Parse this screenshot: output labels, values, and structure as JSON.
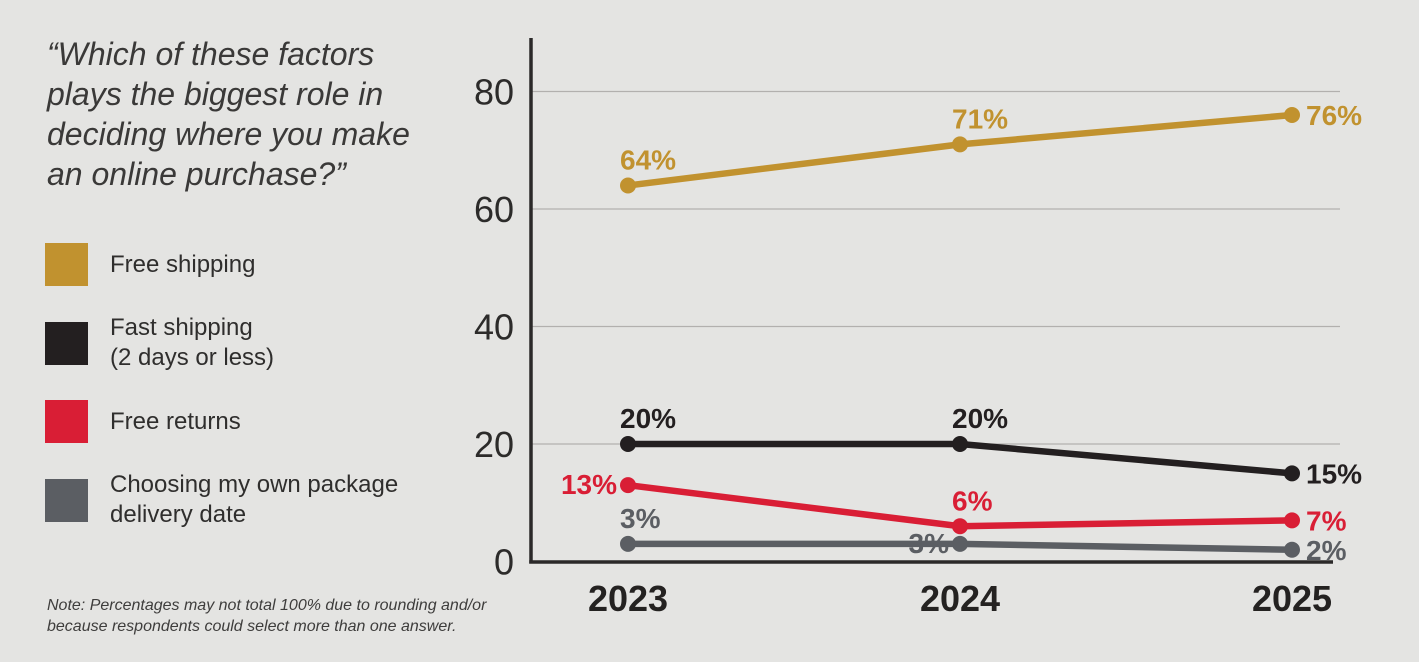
{
  "title": {
    "text": "“Which of these factors\nplays the biggest role in\ndeciding where you make\nan online purchase?”"
  },
  "note": {
    "text": "Note: Percentages may not total 100% due to rounding and/or\nbecause respondents could select more than one answer."
  },
  "colors": {
    "background": "#E4E4E2",
    "grid": "#B2B0AE",
    "axis": "#2B2929",
    "gold": "#C1922F",
    "black": "#231F20",
    "red": "#D91E35",
    "gray": "#5B5E63"
  },
  "legend": {
    "items": [
      {
        "id": "free-shipping",
        "label": "Free shipping",
        "color": "#C1922F"
      },
      {
        "id": "fast-shipping",
        "label": "Fast shipping\n(2 days or less)",
        "color": "#231F20"
      },
      {
        "id": "free-returns",
        "label": "Free returns",
        "color": "#D91E35"
      },
      {
        "id": "package-delivery-date",
        "label": "Choosing my own package\ndelivery date",
        "color": "#5B5E63"
      }
    ]
  },
  "chart_data": {
    "type": "line",
    "categories": [
      "2023",
      "2024",
      "2025"
    ],
    "series": [
      {
        "id": "free-shipping",
        "name": "Free shipping",
        "color": "#C1922F",
        "values": [
          64,
          71,
          76
        ],
        "labels": [
          "64%",
          "71%",
          "76%"
        ],
        "label_pos": [
          "above",
          "above",
          "right"
        ]
      },
      {
        "id": "fast-shipping",
        "name": "Fast shipping (2 days or less)",
        "color": "#231F20",
        "values": [
          20,
          20,
          15
        ],
        "labels": [
          "20%",
          "20%",
          "15%"
        ],
        "label_pos": [
          "above",
          "above",
          "right"
        ]
      },
      {
        "id": "free-returns",
        "name": "Free returns",
        "color": "#D91E35",
        "values": [
          13,
          6,
          7
        ],
        "labels": [
          "13%",
          "6%",
          "7%"
        ],
        "label_pos": [
          "left",
          "above",
          "right"
        ]
      },
      {
        "id": "package-delivery-date",
        "name": "Choosing my own package delivery date",
        "color": "#5B5E63",
        "values": [
          3,
          3,
          2
        ],
        "labels": [
          "3%",
          "3%",
          "2%"
        ],
        "label_pos": [
          "above",
          "left",
          "right"
        ]
      }
    ],
    "yticks": [
      0,
      20,
      40,
      60,
      80
    ],
    "ylim": [
      0,
      88
    ],
    "grid": true,
    "legend_position": "left",
    "xlabel": "",
    "ylabel": ""
  }
}
